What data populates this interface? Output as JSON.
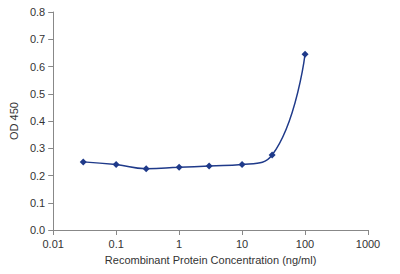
{
  "chart_data": {
    "type": "line",
    "x_label": "Recombinant Protein Concentration (ng/ml)",
    "y_label": "OD 450",
    "x": [
      0.03,
      0.1,
      0.3,
      1,
      3,
      10,
      30,
      100
    ],
    "values": [
      0.25,
      0.24,
      0.225,
      0.23,
      0.235,
      0.24,
      0.275,
      0.645
    ],
    "color": "#1f3a8a",
    "marker": "diamond",
    "log": "x",
    "xlim": [
      0.01,
      1000
    ],
    "xticks": [
      0.01,
      0.1,
      1,
      10,
      100,
      1000
    ],
    "ylim": [
      0,
      0.8
    ],
    "yticks": [
      {
        "value": 0,
        "label": "0.0"
      },
      0.1,
      0.2,
      0.3,
      0.4,
      0.5,
      0.6,
      0.7,
      0.8
    ],
    "grid": false
  }
}
